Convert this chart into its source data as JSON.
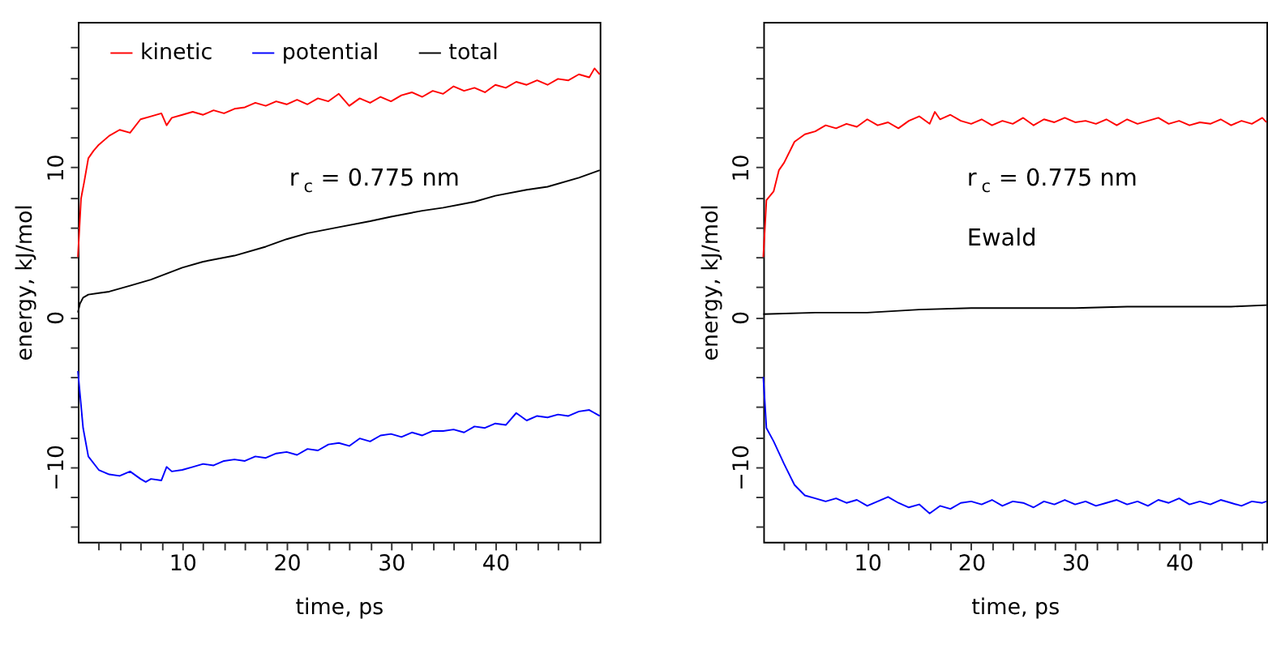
{
  "chart_data": [
    {
      "type": "line",
      "xlabel": "time, ps",
      "ylabel": "energy, kJ/mol",
      "xlim": [
        0,
        50
      ],
      "ylim": [
        -15,
        19.7
      ],
      "xticks": [
        {
          "value": 2,
          "label": null
        },
        {
          "value": 4,
          "label": null
        },
        {
          "value": 6,
          "label": null
        },
        {
          "value": 8,
          "label": null
        },
        10,
        {
          "value": 12,
          "label": null
        },
        {
          "value": 14,
          "label": null
        },
        {
          "value": 16,
          "label": null
        },
        {
          "value": 18,
          "label": null
        },
        20,
        {
          "value": 22,
          "label": null
        },
        {
          "value": 24,
          "label": null
        },
        {
          "value": 26,
          "label": null
        },
        {
          "value": 28,
          "label": null
        },
        30,
        {
          "value": 32,
          "label": null
        },
        {
          "value": 34,
          "label": null
        },
        {
          "value": 36,
          "label": null
        },
        {
          "value": 38,
          "label": null
        },
        40,
        {
          "value": 42,
          "label": null
        },
        {
          "value": 44,
          "label": null
        },
        {
          "value": 46,
          "label": null
        },
        {
          "value": 48,
          "label": null
        }
      ],
      "yticks": [
        {
          "value": -14,
          "label": null
        },
        {
          "value": -12,
          "label": null
        },
        -10,
        {
          "value": -8,
          "label": null
        },
        {
          "value": -6,
          "label": null
        },
        {
          "value": -4,
          "label": null
        },
        {
          "value": -2,
          "label": null
        },
        0,
        {
          "value": 2,
          "label": null
        },
        {
          "value": 4,
          "label": null
        },
        {
          "value": 6,
          "label": null
        },
        {
          "value": 8,
          "label": null
        },
        10,
        {
          "value": 12,
          "label": null
        },
        {
          "value": 14,
          "label": null
        },
        {
          "value": 16,
          "label": null
        },
        {
          "value": 18,
          "label": null
        }
      ],
      "grid": false,
      "legend": "top",
      "line_style": "solid",
      "marker": "none",
      "annotations": [
        "r$_{c}$ = 0.775 nm"
      ],
      "series": [
        {
          "name": "kinetic",
          "color": "#ff0000",
          "x": [
            0,
            0.3,
            0.6,
            1,
            1.5,
            2,
            3,
            4,
            5,
            6,
            7,
            8,
            8.5,
            9,
            10,
            11,
            12,
            13,
            14,
            15,
            16,
            17,
            18,
            19,
            20,
            21,
            22,
            23,
            24,
            25,
            26,
            27,
            28,
            29,
            30,
            31,
            32,
            33,
            34,
            35,
            36,
            37,
            38,
            39,
            40,
            41,
            42,
            43,
            44,
            45,
            46,
            47,
            48,
            49,
            49.5,
            50
          ],
          "values": [
            4.0,
            7.9,
            9.0,
            10.6,
            11.1,
            11.5,
            12.1,
            12.5,
            12.3,
            13.2,
            13.4,
            13.6,
            12.8,
            13.3,
            13.5,
            13.7,
            13.5,
            13.8,
            13.6,
            13.9,
            14.0,
            14.3,
            14.1,
            14.4,
            14.2,
            14.5,
            14.2,
            14.6,
            14.4,
            14.9,
            14.1,
            14.6,
            14.3,
            14.7,
            14.4,
            14.8,
            15.0,
            14.7,
            15.1,
            14.9,
            15.4,
            15.1,
            15.3,
            15.0,
            15.5,
            15.3,
            15.7,
            15.5,
            15.8,
            15.5,
            15.9,
            15.8,
            16.2,
            16.0,
            16.6,
            16.2
          ]
        },
        {
          "name": "potential",
          "color": "#0000ff",
          "x": [
            0,
            0.5,
            1,
            2,
            3,
            4,
            5,
            6,
            6.5,
            7,
            8,
            8.5,
            9,
            10,
            11,
            12,
            13,
            14,
            15,
            16,
            17,
            18,
            19,
            20,
            21,
            22,
            23,
            24,
            25,
            26,
            27,
            28,
            29,
            30,
            31,
            32,
            33,
            34,
            35,
            36,
            37,
            38,
            39,
            40,
            41,
            42,
            43,
            44,
            45,
            46,
            47,
            48,
            49,
            50
          ],
          "values": [
            -3.6,
            -7.4,
            -9.3,
            -10.2,
            -10.5,
            -10.6,
            -10.3,
            -10.8,
            -11.0,
            -10.8,
            -10.9,
            -10.0,
            -10.3,
            -10.2,
            -10.0,
            -9.8,
            -9.9,
            -9.6,
            -9.5,
            -9.6,
            -9.3,
            -9.4,
            -9.1,
            -9.0,
            -9.2,
            -8.8,
            -8.9,
            -8.5,
            -8.4,
            -8.6,
            -8.1,
            -8.3,
            -7.9,
            -7.8,
            -8.0,
            -7.7,
            -7.9,
            -7.6,
            -7.6,
            -7.5,
            -7.7,
            -7.3,
            -7.4,
            -7.1,
            -7.2,
            -6.4,
            -6.9,
            -6.6,
            -6.7,
            -6.5,
            -6.6,
            -6.3,
            -6.2,
            -6.6
          ]
        },
        {
          "name": "total",
          "color": "#000000",
          "x": [
            0,
            0.2,
            0.5,
            1,
            2,
            3,
            5,
            7,
            10,
            12,
            15,
            18,
            20,
            22,
            25,
            28,
            30,
            33,
            35,
            38,
            40,
            43,
            45,
            48,
            50
          ],
          "values": [
            0.3,
            0.9,
            1.3,
            1.5,
            1.6,
            1.7,
            2.1,
            2.5,
            3.3,
            3.7,
            4.1,
            4.7,
            5.2,
            5.6,
            6.0,
            6.4,
            6.7,
            7.1,
            7.3,
            7.7,
            8.1,
            8.5,
            8.7,
            9.3,
            9.8
          ]
        }
      ]
    },
    {
      "type": "line",
      "xlabel": "time, ps",
      "ylabel": "energy, kJ/mol",
      "xlim": [
        0,
        48.4
      ],
      "ylim": [
        -15,
        19.7
      ],
      "xticks": [
        {
          "value": 2,
          "label": null
        },
        {
          "value": 4,
          "label": null
        },
        {
          "value": 6,
          "label": null
        },
        {
          "value": 8,
          "label": null
        },
        10,
        {
          "value": 12,
          "label": null
        },
        {
          "value": 14,
          "label": null
        },
        {
          "value": 16,
          "label": null
        },
        {
          "value": 18,
          "label": null
        },
        20,
        {
          "value": 22,
          "label": null
        },
        {
          "value": 24,
          "label": null
        },
        {
          "value": 26,
          "label": null
        },
        {
          "value": 28,
          "label": null
        },
        30,
        {
          "value": 32,
          "label": null
        },
        {
          "value": 34,
          "label": null
        },
        {
          "value": 36,
          "label": null
        },
        {
          "value": 38,
          "label": null
        },
        40,
        {
          "value": 42,
          "label": null
        },
        {
          "value": 44,
          "label": null
        },
        {
          "value": 46,
          "label": null
        },
        {
          "value": 48,
          "label": null
        }
      ],
      "yticks": [
        {
          "value": -14,
          "label": null
        },
        {
          "value": -12,
          "label": null
        },
        -10,
        {
          "value": -8,
          "label": null
        },
        {
          "value": -6,
          "label": null
        },
        {
          "value": -4,
          "label": null
        },
        {
          "value": -2,
          "label": null
        },
        0,
        {
          "value": 2,
          "label": null
        },
        {
          "value": 4,
          "label": null
        },
        {
          "value": 6,
          "label": null
        },
        {
          "value": 8,
          "label": null
        },
        10,
        {
          "value": 12,
          "label": null
        },
        {
          "value": 14,
          "label": null
        },
        {
          "value": 16,
          "label": null
        },
        {
          "value": 18,
          "label": null
        }
      ],
      "grid": false,
      "legend": "top",
      "line_style": "solid",
      "marker": "none",
      "annotations": [
        "r$_{c}$ = 0.775 nm",
        "Ewald"
      ],
      "series": [
        {
          "name": "kinetic",
          "color": "#ff0000",
          "x": [
            0,
            0.3,
            1,
            1.5,
            2,
            3,
            4,
            5,
            6,
            7,
            8,
            9,
            10,
            11,
            12,
            13,
            14,
            15,
            16,
            16.5,
            17,
            18,
            19,
            20,
            21,
            22,
            23,
            24,
            25,
            26,
            27,
            28,
            29,
            30,
            31,
            32,
            33,
            34,
            35,
            36,
            37,
            38,
            39,
            40,
            41,
            42,
            43,
            44,
            45,
            46,
            47,
            48,
            48.4
          ],
          "values": [
            4.0,
            7.8,
            8.4,
            9.8,
            10.3,
            11.7,
            12.2,
            12.4,
            12.8,
            12.6,
            12.9,
            12.7,
            13.2,
            12.8,
            13.0,
            12.6,
            13.1,
            13.4,
            12.9,
            13.7,
            13.2,
            13.5,
            13.1,
            12.9,
            13.2,
            12.8,
            13.1,
            12.9,
            13.3,
            12.8,
            13.2,
            13.0,
            13.3,
            13.0,
            13.1,
            12.9,
            13.2,
            12.8,
            13.2,
            12.9,
            13.1,
            13.3,
            12.9,
            13.1,
            12.8,
            13.0,
            12.9,
            13.2,
            12.8,
            13.1,
            12.9,
            13.3,
            13.0
          ]
        },
        {
          "name": "potential",
          "color": "#0000ff",
          "x": [
            0,
            0.3,
            1,
            2,
            3,
            4,
            5,
            6,
            7,
            8,
            9,
            10,
            11,
            12,
            13,
            14,
            15,
            16,
            17,
            18,
            19,
            20,
            21,
            22,
            23,
            24,
            25,
            26,
            27,
            28,
            29,
            30,
            31,
            32,
            33,
            34,
            35,
            36,
            37,
            38,
            39,
            40,
            41,
            42,
            43,
            44,
            45,
            46,
            47,
            48,
            48.4
          ],
          "values": [
            -4.0,
            -7.4,
            -8.3,
            -9.8,
            -11.2,
            -11.9,
            -12.1,
            -12.3,
            -12.1,
            -12.4,
            -12.2,
            -12.6,
            -12.3,
            -12.0,
            -12.4,
            -12.7,
            -12.5,
            -13.1,
            -12.6,
            -12.8,
            -12.4,
            -12.3,
            -12.5,
            -12.2,
            -12.6,
            -12.3,
            -12.4,
            -12.7,
            -12.3,
            -12.5,
            -12.2,
            -12.5,
            -12.3,
            -12.6,
            -12.4,
            -12.2,
            -12.5,
            -12.3,
            -12.6,
            -12.2,
            -12.4,
            -12.1,
            -12.5,
            -12.3,
            -12.5,
            -12.2,
            -12.4,
            -12.6,
            -12.3,
            -12.4,
            -12.3
          ]
        },
        {
          "name": "total",
          "color": "#000000",
          "x": [
            0,
            5,
            10,
            15,
            20,
            25,
            30,
            35,
            40,
            45,
            48.4
          ],
          "values": [
            0.2,
            0.3,
            0.3,
            0.5,
            0.6,
            0.6,
            0.6,
            0.7,
            0.7,
            0.7,
            0.8
          ]
        }
      ]
    }
  ]
}
